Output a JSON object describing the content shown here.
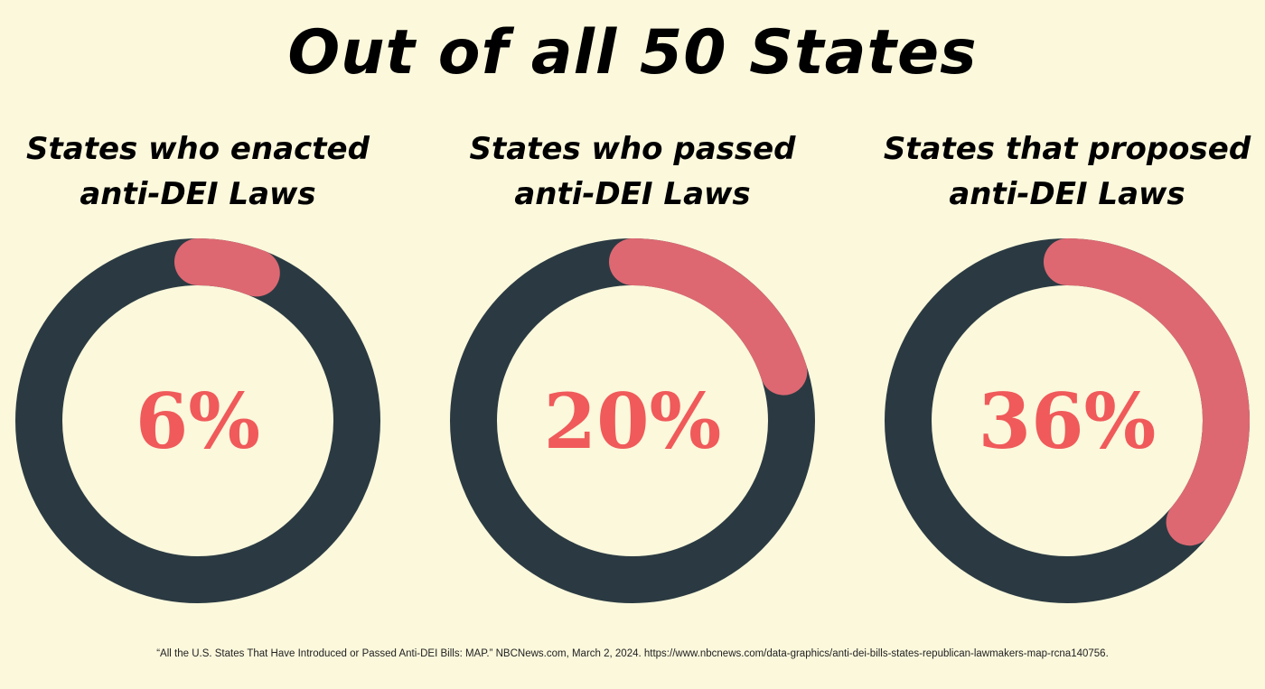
{
  "title": "Out of all 50 States",
  "colors": {
    "background": "#fbf8dc",
    "track": "#2b3a42",
    "accent": "#dd6872",
    "label": "#f05a5a"
  },
  "chart_data": [
    {
      "type": "pie",
      "title": "States who enacted anti-DEI Laws",
      "title_lines": [
        "States who enacted",
        "anti-DEI Laws"
      ],
      "value": 6,
      "value_label": "6%",
      "max": 100
    },
    {
      "type": "pie",
      "title": "States who passed anti-DEI Laws",
      "title_lines": [
        "States who passed",
        "anti-DEI Laws"
      ],
      "value": 20,
      "value_label": "20%",
      "max": 100
    },
    {
      "type": "pie",
      "title": "States that proposed anti-DEI Laws",
      "title_lines": [
        "States that proposed",
        "anti-DEI Laws"
      ],
      "value": 36,
      "value_label": "36%",
      "max": 100
    }
  ],
  "footnote": "“All the U.S. States That Have Introduced or Passed Anti-DEI Bills: MAP.” NBCNews.com, March 2, 2024. https://www.nbcnews.com/data-graphics/anti-dei-bills-states-republican-lawmakers-map-rcna140756."
}
